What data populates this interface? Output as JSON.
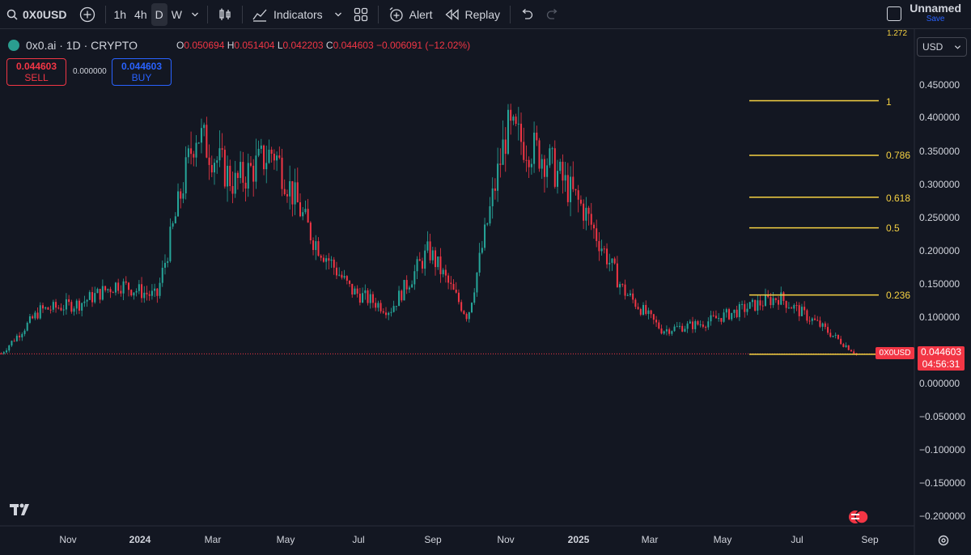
{
  "toolbar": {
    "symbol": "0X0USD",
    "timeframes": [
      "1h",
      "4h",
      "D",
      "W"
    ],
    "active_timeframe": "D",
    "indicators_label": "Indicators",
    "alert_label": "Alert",
    "replay_label": "Replay",
    "layout_title": "Unnamed",
    "save_label": "Save"
  },
  "legend": {
    "title": "0x0.ai · 1D · CRYPTO",
    "open_key": "O",
    "open": "0.050694",
    "high_key": "H",
    "high": "0.051404",
    "low_key": "L",
    "low": "0.042203",
    "close_key": "C",
    "close": "0.044603",
    "change": "−0.006091 (−12.02%)"
  },
  "trade": {
    "sell_price": "0.044603",
    "sell_label": "SELL",
    "spread": "0.000000",
    "buy_price": "0.044603",
    "buy_label": "BUY"
  },
  "currency": "USD",
  "price_axis": {
    "labels": [
      "0.450000",
      "0.400000",
      "0.350000",
      "0.300000",
      "0.250000",
      "0.200000",
      "0.150000",
      "0.100000",
      "0.000000",
      "−0.050000",
      "−0.100000",
      "−0.150000",
      "−0.200000"
    ],
    "top_partial": "1.272"
  },
  "time_axis": [
    "Nov",
    "2024",
    "Mar",
    "May",
    "Jul",
    "Sep",
    "Nov",
    "2025",
    "Mar",
    "May",
    "Jul",
    "Sep"
  ],
  "current": {
    "symbol_tag": "0X0USD",
    "price": "0.044603",
    "countdown": "04:56:31"
  },
  "fib_levels": [
    "1",
    "0.786",
    "0.618",
    "0.5",
    "0.236"
  ],
  "colors": {
    "up": "#26a69a",
    "down": "#f23645",
    "fib": "#f5d142",
    "bg": "#131722"
  },
  "chart_data": {
    "type": "candlestick",
    "x": [
      "2023-10",
      "2023-11",
      "2023-12",
      "2024-01",
      "2024-02",
      "2024-03",
      "2024-04",
      "2024-05",
      "2024-06",
      "2024-07",
      "2024-08",
      "2024-09",
      "2024-10",
      "2024-11",
      "2024-12",
      "2025-01",
      "2025-02",
      "2025-03",
      "2025-04",
      "2025-05",
      "2025-06",
      "2025-07",
      "2025-08"
    ],
    "close": [
      0.045,
      0.11,
      0.12,
      0.15,
      0.13,
      0.38,
      0.3,
      0.35,
      0.22,
      0.14,
      0.11,
      0.2,
      0.1,
      0.38,
      0.34,
      0.26,
      0.14,
      0.08,
      0.09,
      0.11,
      0.13,
      0.09,
      0.045
    ],
    "ylim": [
      -0.22,
      0.48
    ]
  }
}
